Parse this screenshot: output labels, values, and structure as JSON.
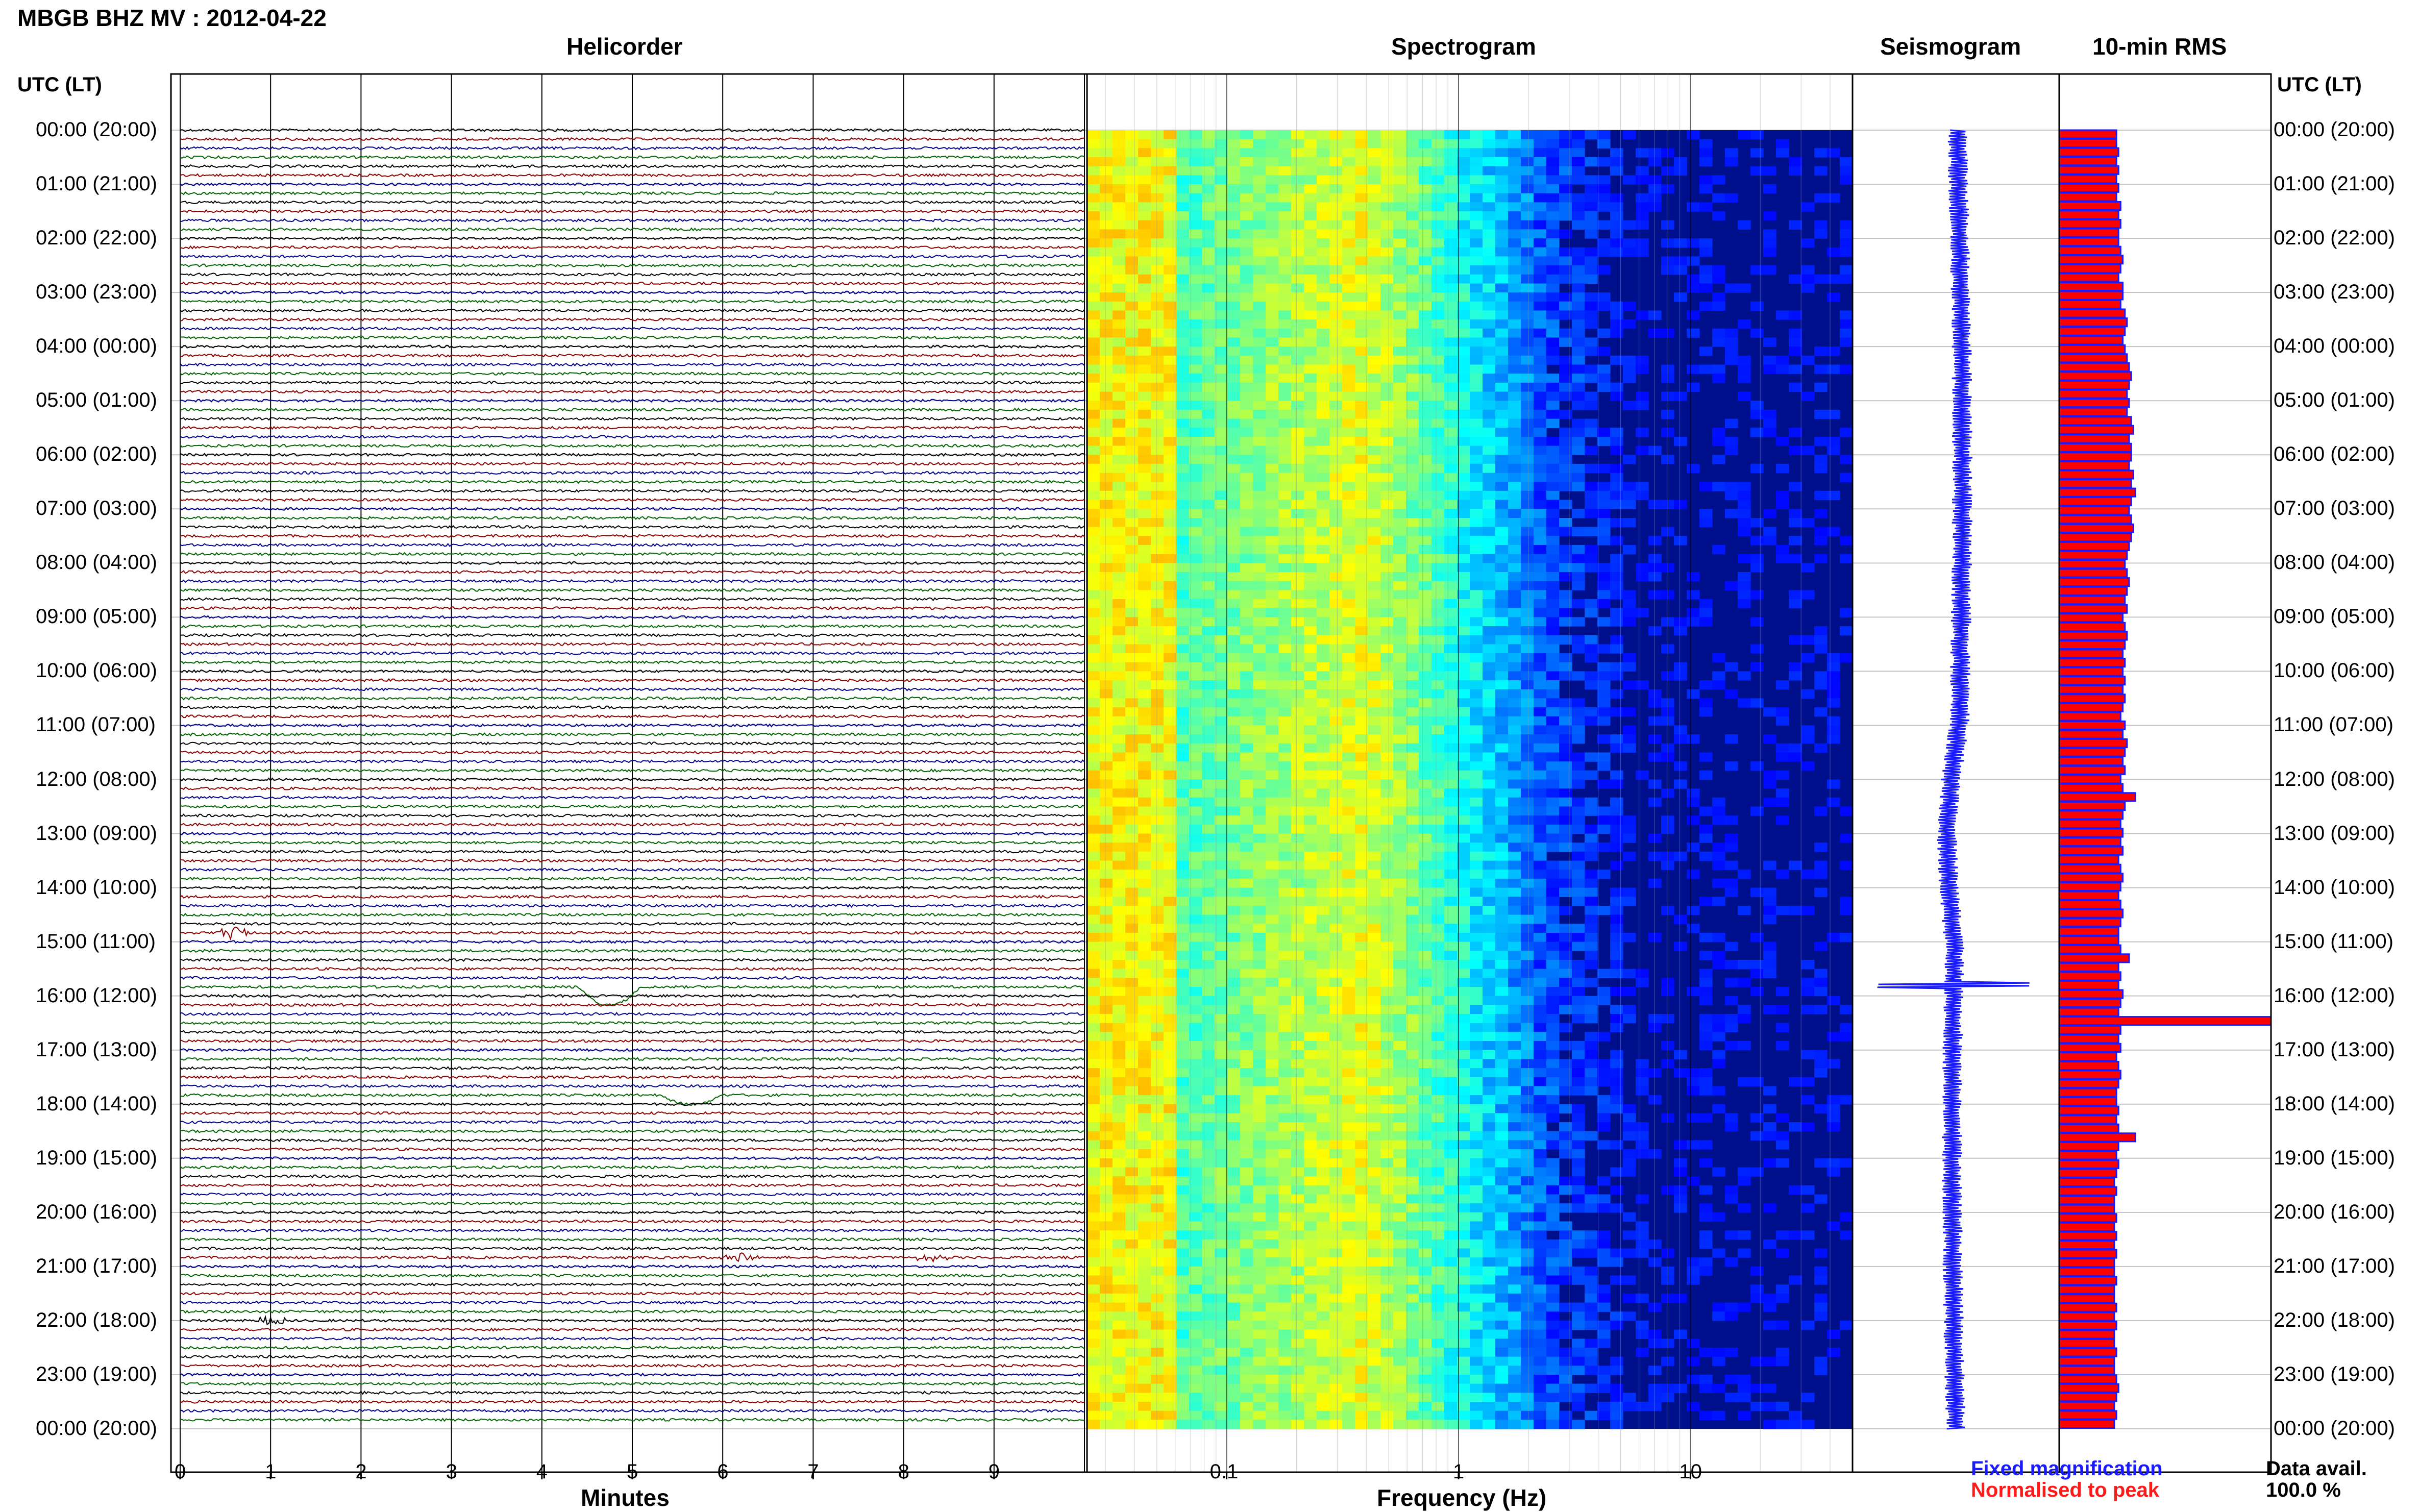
{
  "header": {
    "station_title": "MBGB BHZ MV : 2012-04-22",
    "utc_label_left": "UTC (LT)",
    "utc_label_right": "UTC (LT)"
  },
  "panels": {
    "helicorder": "Helicorder",
    "spectrogram": "Spectrogram",
    "seismogram": "Seismogram",
    "rms": "10-min RMS"
  },
  "footer": {
    "minutes_label": "Minutes",
    "frequency_label": "Frequency (Hz)",
    "legend_fixed": "Fixed magnification",
    "legend_normalised": "Normalised to peak",
    "data_avail_label": "Data avail.",
    "data_avail_value": "100.0 %"
  },
  "colors": {
    "legend_fixed": "#1a1aff",
    "legend_normalised": "#ff1a1a",
    "rms_bar": "#ff0000",
    "rms_edge": "#1a1aff",
    "seismogram": "#1a1aff",
    "trace_palette": [
      "#000000",
      "#8b0000",
      "#00008b",
      "#006400"
    ]
  },
  "chart_data": {
    "type": "heatmap",
    "time_labels": [
      "00:00 (20:00)",
      "01:00 (21:00)",
      "02:00 (22:00)",
      "03:00 (23:00)",
      "04:00 (00:00)",
      "05:00 (01:00)",
      "06:00 (02:00)",
      "07:00 (03:00)",
      "08:00 (04:00)",
      "09:00 (05:00)",
      "10:00 (06:00)",
      "11:00 (07:00)",
      "12:00 (08:00)",
      "13:00 (09:00)",
      "14:00 (10:00)",
      "15:00 (11:00)",
      "16:00 (12:00)",
      "17:00 (13:00)",
      "18:00 (14:00)",
      "19:00 (15:00)",
      "20:00 (16:00)",
      "21:00 (17:00)",
      "22:00 (18:00)",
      "23:00 (19:00)",
      "00:00 (20:00)"
    ],
    "helicorder": {
      "x_ticks": [
        "0",
        "1",
        "2",
        "3",
        "4",
        "5",
        "6",
        "7",
        "8",
        "9"
      ],
      "xlim": [
        0,
        10
      ],
      "rows_per_hour": 6,
      "events": [
        {
          "hour": 14.833,
          "minute": 0.6,
          "amp": 3,
          "kind": "burst"
        },
        {
          "hour": 15.833,
          "minute": 4.6,
          "amp": 4,
          "kind": "dip"
        },
        {
          "hour": 17.833,
          "minute": 5.5,
          "amp": 2,
          "kind": "dip"
        },
        {
          "hour": 20.833,
          "minute": 6.2,
          "amp": 2,
          "kind": "burst"
        },
        {
          "hour": 20.833,
          "minute": 8.3,
          "amp": 2,
          "kind": "burst"
        },
        {
          "hour": 22.0,
          "minute": 1.0,
          "amp": 2,
          "kind": "burst"
        }
      ]
    },
    "spectrogram": {
      "x_ticks": [
        "0.1",
        "1",
        "10"
      ],
      "x_tick_values": [
        0.1,
        1,
        10
      ],
      "xlim": [
        0.025,
        50
      ],
      "x_scale": "log"
    },
    "rms": {
      "normalised_values": [
        0.27,
        0.27,
        0.28,
        0.27,
        0.28,
        0.27,
        0.28,
        0.27,
        0.29,
        0.28,
        0.29,
        0.28,
        0.28,
        0.29,
        0.3,
        0.29,
        0.28,
        0.3,
        0.3,
        0.29,
        0.31,
        0.32,
        0.31,
        0.3,
        0.31,
        0.32,
        0.33,
        0.34,
        0.33,
        0.32,
        0.33,
        0.32,
        0.34,
        0.35,
        0.33,
        0.34,
        0.34,
        0.33,
        0.35,
        0.34,
        0.36,
        0.34,
        0.33,
        0.34,
        0.35,
        0.34,
        0.33,
        0.32,
        0.31,
        0.32,
        0.33,
        0.32,
        0.31,
        0.32,
        0.3,
        0.31,
        0.32,
        0.31,
        0.3,
        0.31,
        0.3,
        0.31,
        0.3,
        0.31,
        0.3,
        0.29,
        0.31,
        0.3,
        0.32,
        0.31,
        0.3,
        0.31,
        0.29,
        0.3,
        0.36,
        0.31,
        0.3,
        0.29,
        0.3,
        0.29,
        0.3,
        0.28,
        0.29,
        0.3,
        0.29,
        0.28,
        0.29,
        0.3,
        0.29,
        0.28,
        0.28,
        0.29,
        0.33,
        0.28,
        0.29,
        0.28,
        0.3,
        0.29,
        0.28,
        1.0,
        0.29,
        0.28,
        0.29,
        0.27,
        0.28,
        0.29,
        0.28,
        0.27,
        0.27,
        0.28,
        0.27,
        0.28,
        0.36,
        0.28,
        0.27,
        0.28,
        0.27,
        0.26,
        0.27,
        0.26,
        0.26,
        0.27,
        0.26,
        0.27,
        0.26,
        0.27,
        0.26,
        0.26,
        0.27,
        0.26,
        0.26,
        0.27,
        0.26,
        0.27,
        0.26,
        0.26,
        0.27,
        0.26,
        0.26,
        0.27,
        0.28,
        0.27,
        0.26,
        0.27,
        0.26
      ]
    }
  }
}
